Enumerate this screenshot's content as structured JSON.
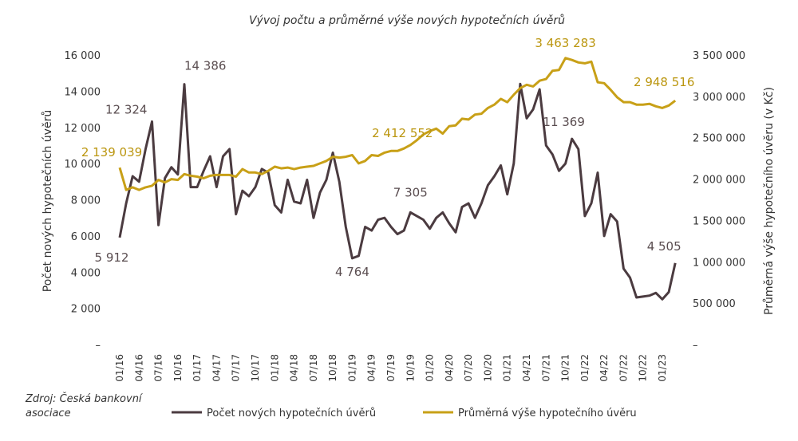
{
  "chart_data": {
    "type": "line",
    "title": "Vývoj počtu a průměrné výše nových hypotečních úvěrů",
    "source": "Zdroj: Česká bankovní asociace",
    "ylabel": "Počet nových hypotečních úvěrů",
    "y2label": "Průměrná výše hypotečního úvěru (v Kč)",
    "categories": [
      "01/16",
      null,
      null,
      "04/16",
      null,
      null,
      "07/16",
      null,
      null,
      "10/16",
      null,
      null,
      "01/17",
      null,
      null,
      "04/17",
      null,
      null,
      "07/17",
      null,
      null,
      "10/17",
      null,
      null,
      "01/18",
      null,
      null,
      "04/18",
      null,
      null,
      "07/18",
      null,
      null,
      "10/18",
      null,
      null,
      "01/19",
      null,
      null,
      "04/19",
      null,
      null,
      "07/19",
      null,
      null,
      "10/19",
      null,
      null,
      "01/20",
      null,
      null,
      "04/20",
      null,
      null,
      "07/20",
      null,
      null,
      "10/20",
      null,
      null,
      "01/21",
      null,
      null,
      "04/21",
      null,
      null,
      "07/21",
      null,
      null,
      "10/21",
      null,
      null,
      "01/22",
      null,
      null,
      "04/22",
      null,
      null,
      "07/22",
      null,
      null,
      "10/22",
      null,
      null,
      "01/23",
      null,
      null
    ],
    "ylim": [
      0,
      16000
    ],
    "yticks": [
      {
        "value": 0,
        "label": "–"
      },
      {
        "value": 2000,
        "label": "2 000"
      },
      {
        "value": 4000,
        "label": "4 000"
      },
      {
        "value": 6000,
        "label": "6 000"
      },
      {
        "value": 8000,
        "label": "8 000"
      },
      {
        "value": 10000,
        "label": "10 000"
      },
      {
        "value": 12000,
        "label": "12 000"
      },
      {
        "value": 14000,
        "label": "14 000"
      },
      {
        "value": 16000,
        "label": "16 000"
      }
    ],
    "y2lim": [
      0,
      3500000
    ],
    "y2ticks": [
      {
        "value": 0,
        "label": "–"
      },
      {
        "value": 500000,
        "label": "500 000"
      },
      {
        "value": 1000000,
        "label": "1 000 000"
      },
      {
        "value": 1500000,
        "label": "1 500 000"
      },
      {
        "value": 2000000,
        "label": "2 000 000"
      },
      {
        "value": 2500000,
        "label": "2 500 000"
      },
      {
        "value": 3000000,
        "label": "3 000 000"
      },
      {
        "value": 3500000,
        "label": "3 500 000"
      }
    ],
    "grid": false,
    "legend": "bottom",
    "series": [
      {
        "name": "Počet nových hypotečních úvěrů",
        "color": "#4b3b40",
        "axis": "y",
        "values": [
          5912,
          7800,
          9300,
          9000,
          10800,
          12324,
          6600,
          9200,
          9800,
          9400,
          14386,
          8700,
          8700,
          9600,
          10400,
          8700,
          10400,
          10800,
          7200,
          8500,
          8200,
          8700,
          9700,
          9500,
          7700,
          7300,
          9100,
          7900,
          7800,
          9100,
          7000,
          8400,
          9100,
          10600,
          9000,
          6500,
          4764,
          4900,
          6500,
          6300,
          6900,
          7000,
          6500,
          6100,
          6300,
          7305,
          7100,
          6900,
          6400,
          7000,
          7300,
          6700,
          6200,
          7600,
          7800,
          7000,
          7800,
          8800,
          9300,
          9900,
          8300,
          10000,
          14400,
          12500,
          13000,
          14100,
          11000,
          10500,
          9600,
          10000,
          11369,
          10800,
          7100,
          7800,
          9500,
          6000,
          7200,
          6800,
          4200,
          3700,
          2600,
          2650,
          2700,
          2850,
          2500,
          2900,
          4505
        ],
        "value_labels": [
          "5 912",
          null,
          null,
          null,
          null,
          "12 324",
          null,
          null,
          null,
          null,
          "14 386",
          null,
          null,
          null,
          null,
          null,
          null,
          null,
          null,
          null,
          null,
          null,
          null,
          null,
          null,
          null,
          null,
          null,
          null,
          null,
          null,
          null,
          null,
          null,
          null,
          null,
          "4 764",
          null,
          null,
          null,
          null,
          null,
          null,
          null,
          null,
          "7 305",
          null,
          null,
          null,
          null,
          null,
          null,
          null,
          null,
          null,
          null,
          null,
          null,
          null,
          null,
          null,
          null,
          null,
          null,
          null,
          null,
          null,
          null,
          null,
          null,
          "11 369",
          null,
          null,
          null,
          null,
          null,
          null,
          null,
          null,
          null,
          null,
          null,
          null,
          null,
          null,
          null,
          "4 505"
        ]
      },
      {
        "name": "Průměrná výše hypotečního úvěru",
        "color": "#c8a017",
        "axis": "y2",
        "values": [
          2139039,
          1870000,
          1900000,
          1870000,
          1900000,
          1920000,
          1990000,
          1960000,
          2000000,
          1990000,
          2060000,
          2040000,
          2030000,
          2010000,
          2040000,
          2050000,
          2050000,
          2050000,
          2030000,
          2120000,
          2080000,
          2080000,
          2060000,
          2100000,
          2150000,
          2130000,
          2140000,
          2120000,
          2140000,
          2150000,
          2160000,
          2190000,
          2220000,
          2270000,
          2260000,
          2270000,
          2290000,
          2190000,
          2220000,
          2290000,
          2280000,
          2320000,
          2340000,
          2340000,
          2370000,
          2412552,
          2470000,
          2540000,
          2580000,
          2610000,
          2550000,
          2640000,
          2650000,
          2730000,
          2720000,
          2780000,
          2790000,
          2860000,
          2900000,
          2970000,
          2930000,
          3020000,
          3100000,
          3140000,
          3120000,
          3190000,
          3210000,
          3310000,
          3320000,
          3463283,
          3440000,
          3410000,
          3400000,
          3420000,
          3170000,
          3160000,
          3080000,
          2990000,
          2930000,
          2930000,
          2900000,
          2900000,
          2910000,
          2880000,
          2860000,
          2890000,
          2948516
        ],
        "value_labels": [
          "2 139 039",
          null,
          null,
          null,
          null,
          null,
          null,
          null,
          null,
          null,
          null,
          null,
          null,
          null,
          null,
          null,
          null,
          null,
          null,
          null,
          null,
          null,
          null,
          null,
          null,
          null,
          null,
          null,
          null,
          null,
          null,
          null,
          null,
          null,
          null,
          null,
          null,
          null,
          null,
          null,
          null,
          null,
          null,
          null,
          null,
          "2 412 552",
          null,
          null,
          null,
          null,
          null,
          null,
          null,
          null,
          null,
          null,
          null,
          null,
          null,
          null,
          null,
          null,
          null,
          null,
          null,
          null,
          null,
          null,
          null,
          "3 463 283",
          null,
          null,
          null,
          null,
          null,
          null,
          null,
          null,
          null,
          null,
          null,
          null,
          null,
          null,
          null,
          null,
          "2 948 516"
        ]
      }
    ]
  }
}
